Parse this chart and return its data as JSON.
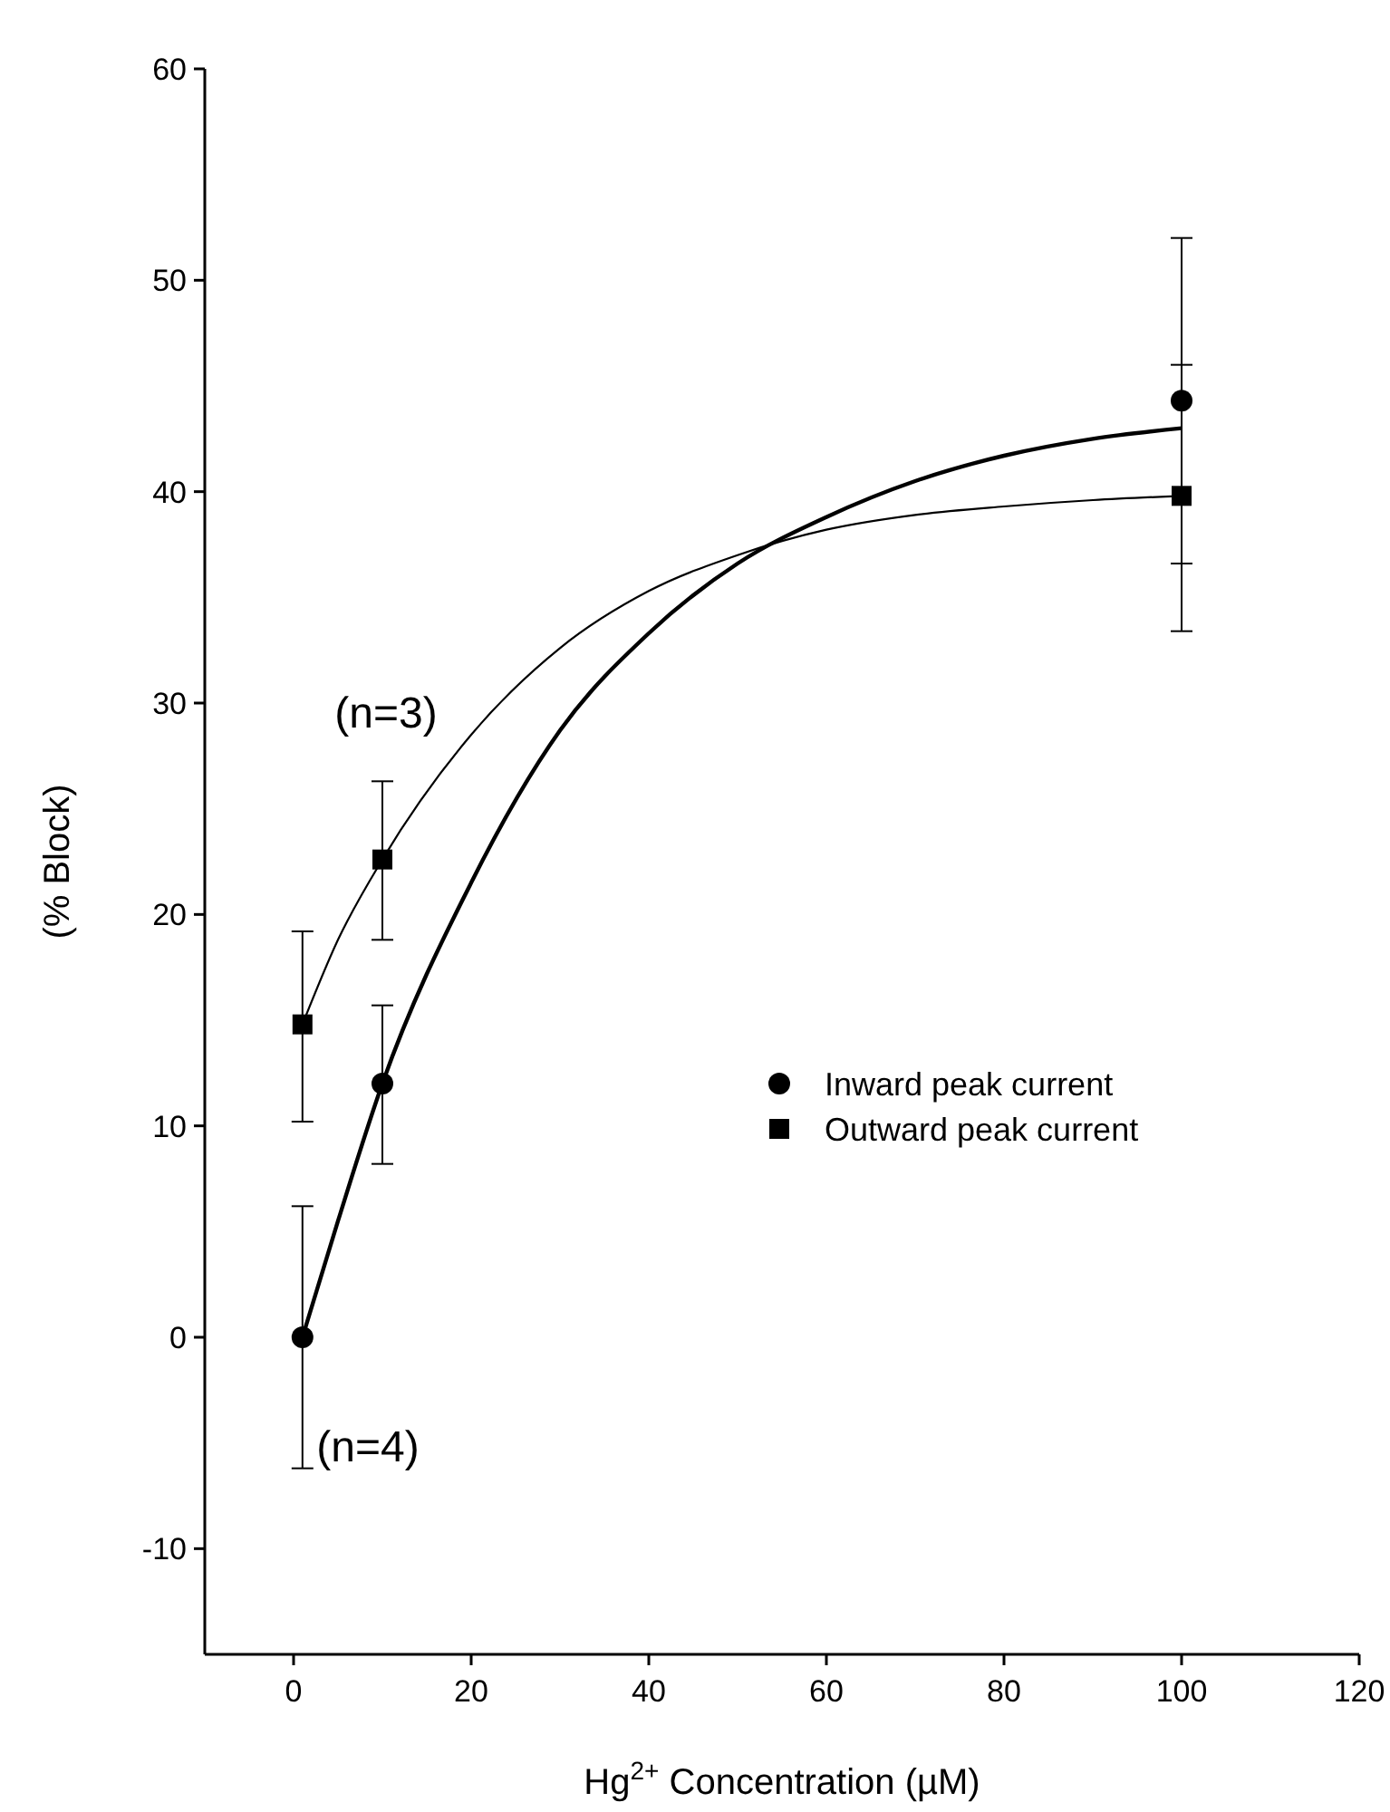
{
  "chart_data": {
    "type": "scatter",
    "xlabel": "Hg$^{2+}$ Concentration (µM)",
    "ylabel": "(% Block)",
    "xlim": [
      -10,
      120
    ],
    "xticks": [
      0,
      20,
      40,
      60,
      80,
      100,
      120
    ],
    "ylim": [
      -15,
      60
    ],
    "yticks": [
      -10,
      0,
      10,
      20,
      30,
      40,
      50,
      60
    ],
    "grid": false,
    "legend": "right",
    "series": [
      {
        "name": "Inward peak current",
        "marker": "circle",
        "color": "#000000",
        "x": [
          1,
          10,
          100
        ],
        "values": [
          0,
          12,
          44.3
        ],
        "errors": [
          6.2,
          [
            8.2,
            15.7
          ],
          [
            36.6,
            52
          ]
        ]
      },
      {
        "name": "Outward peak current",
        "marker": "square",
        "color": "#000000",
        "x": [
          1,
          10,
          100
        ],
        "values": [
          14.8,
          22.6,
          39.8
        ],
        "errors": [
          [
            10.2,
            19.2
          ],
          [
            18.8,
            26.3
          ],
          [
            33.4,
            46
          ]
        ]
      },
      {
        "type": "line",
        "marker": "none",
        "color": "#000000",
        "x": [
          1,
          5,
          10,
          20,
          30,
          40,
          50,
          60,
          70,
          80,
          90,
          100
        ],
        "values": [
          0,
          5.5,
          12,
          21.5,
          28.7,
          33.3,
          36.6,
          38.8,
          40.5,
          41.7,
          42.5,
          43
        ]
      },
      {
        "type": "line",
        "marker": "none",
        "color": "#000000",
        "x": [
          1,
          5,
          10,
          20,
          30,
          40,
          50,
          60,
          70,
          80,
          90,
          100
        ],
        "values": [
          14.8,
          18.8,
          22.6,
          28.5,
          32.6,
          35.3,
          37,
          38.2,
          38.9,
          39.3,
          39.6,
          39.8
        ]
      }
    ],
    "annotations": [
      "(n=3)",
      "(n=4)"
    ]
  }
}
